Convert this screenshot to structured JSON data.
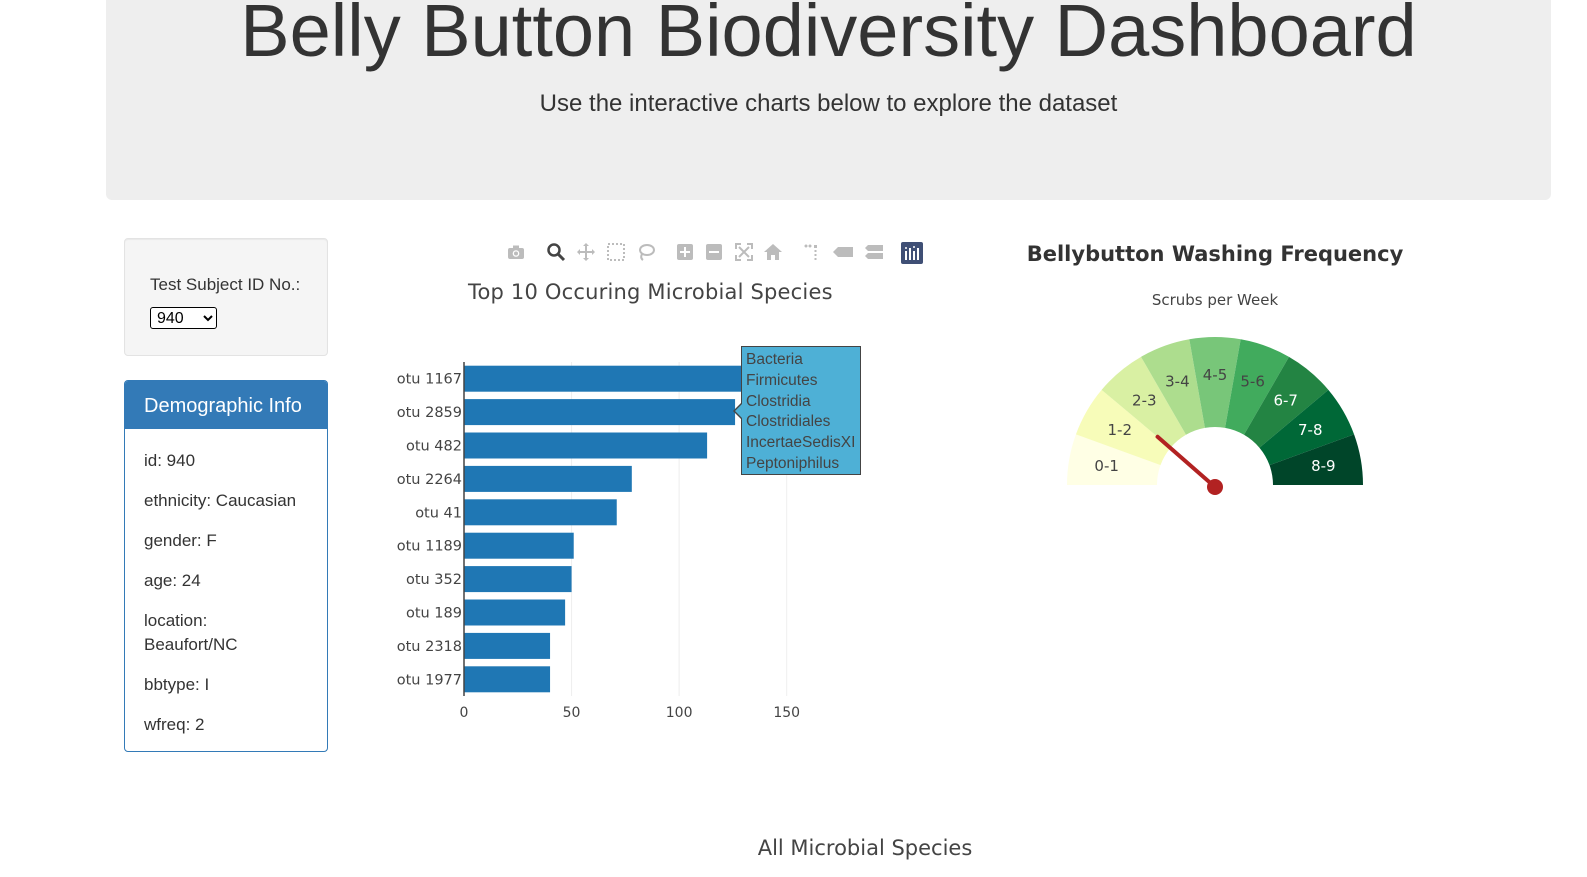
{
  "header": {
    "title": "Belly Button Biodiversity Dashboard",
    "subtitle": "Use the interactive charts below to explore the dataset"
  },
  "selector": {
    "label": "Test Subject ID No.:",
    "selected": "940"
  },
  "demographics": {
    "heading": "Demographic Info",
    "rows": [
      "id: 940",
      "ethnicity: Caucasian",
      "gender: F",
      "age: 24",
      "location: Beaufort/NC",
      "bbtype: I",
      "wfreq: 2"
    ]
  },
  "modebar": {
    "icons": [
      "camera-icon",
      "zoom-icon",
      "pan-icon",
      "box-select-icon",
      "lasso-icon",
      "zoom-in-icon",
      "zoom-out-icon",
      "autoscale-icon",
      "home-icon",
      "spike-lines-icon",
      "hover-closest-icon",
      "hover-compare-icon",
      "plotly-logo-icon"
    ]
  },
  "chart_data": [
    {
      "type": "bar",
      "orientation": "horizontal",
      "title": "Top 10 Occuring Microbial Species",
      "categories": [
        "otu 1167",
        "otu 2859",
        "otu 482",
        "otu 2264",
        "otu 41",
        "otu 1189",
        "otu 352",
        "otu 189",
        "otu 2318",
        "otu 1977"
      ],
      "values": [
        163,
        126,
        113,
        78,
        71,
        51,
        50,
        47,
        40,
        40
      ],
      "xticks": [
        "0",
        "50",
        "100",
        "150"
      ],
      "xlim": [
        0,
        185
      ],
      "color": "#1f77b4",
      "grid": "vertical",
      "tooltip": {
        "category": "otu 2859",
        "lines": [
          "Bacteria",
          "Firmicutes",
          "Clostridia",
          "Clostridiales",
          "IncertaeSedisXI",
          "Peptoniphilus"
        ]
      }
    },
    {
      "type": "gauge",
      "title": "Bellybutton Washing Frequency",
      "subtitle": "Scrubs per Week",
      "segments": [
        "0-1",
        "1-2",
        "2-3",
        "3-4",
        "4-5",
        "5-6",
        "6-7",
        "7-8",
        "8-9"
      ],
      "colors": [
        "#ffffe5",
        "#f7fcb9",
        "#d9f0a3",
        "#addd8e",
        "#78c679",
        "#41ab5d",
        "#238443",
        "#006837",
        "#004529"
      ],
      "value": 2,
      "range": [
        0,
        9
      ],
      "needle_color": "#b22222"
    },
    {
      "type": "scatter",
      "title": "All Microbial Species"
    }
  ]
}
